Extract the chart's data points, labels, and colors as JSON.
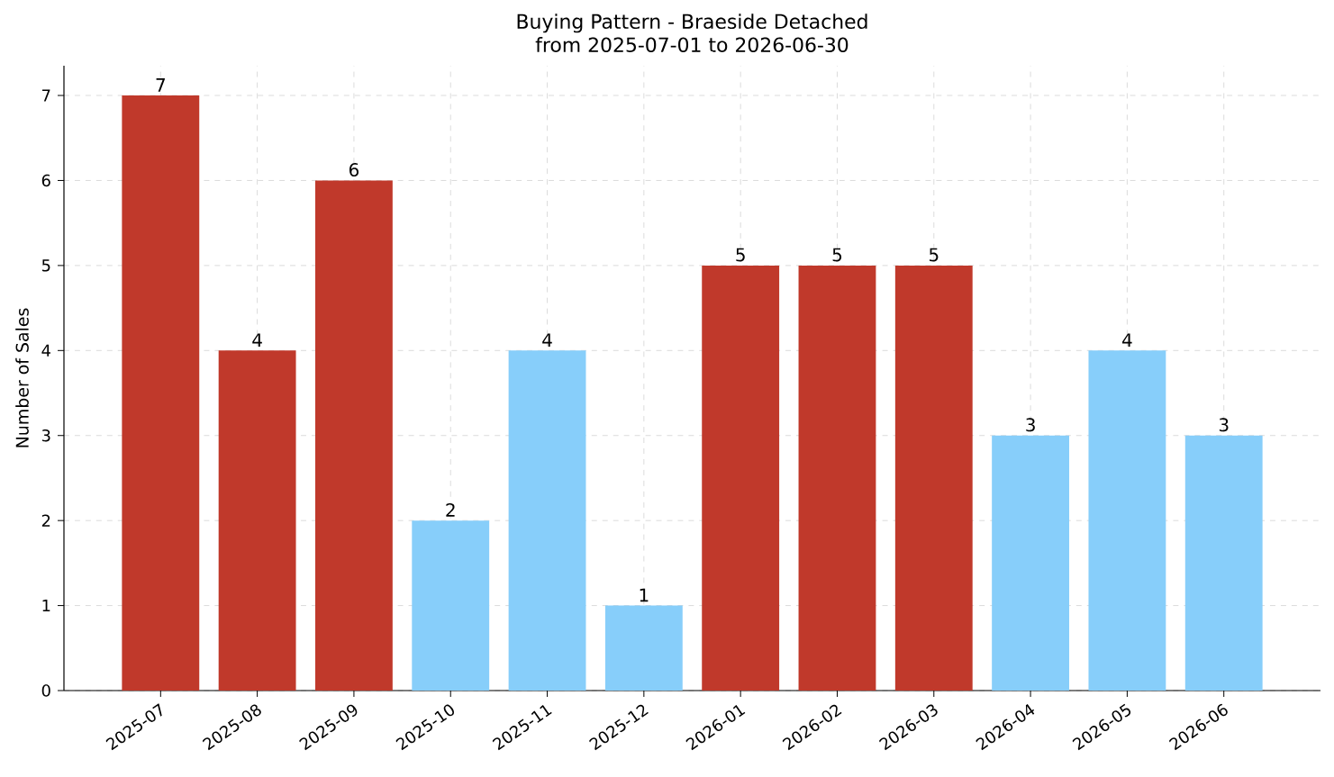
{
  "chart_data": {
    "type": "bar",
    "title": "Buying Pattern - Braeside Detached",
    "subtitle": "from 2025-07-01 to 2026-06-30",
    "ylabel": "Number of Sales",
    "categories": [
      "2025-07",
      "2025-08",
      "2025-09",
      "2025-10",
      "2025-11",
      "2025-12",
      "2026-01",
      "2026-02",
      "2026-03",
      "2026-04",
      "2026-05",
      "2026-06"
    ],
    "values": [
      7,
      4,
      6,
      2,
      4,
      1,
      5,
      5,
      5,
      3,
      4,
      3
    ],
    "colors": [
      "#c0392b",
      "#c0392b",
      "#c0392b",
      "#87cefa",
      "#87cefa",
      "#87cefa",
      "#c0392b",
      "#c0392b",
      "#c0392b",
      "#87cefa",
      "#87cefa",
      "#87cefa"
    ],
    "ylim": [
      0,
      7.35
    ],
    "yticks": [
      0,
      1,
      2,
      3,
      4,
      5,
      6,
      7
    ],
    "grid": true,
    "data_labels": true
  }
}
